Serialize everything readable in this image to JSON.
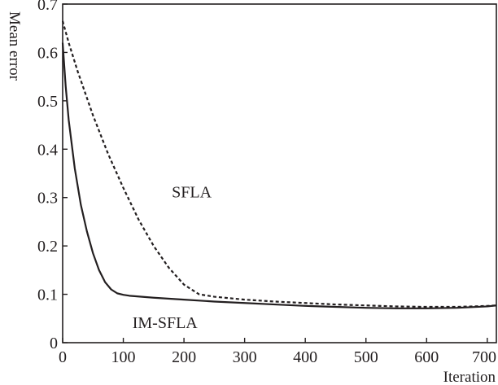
{
  "chart_data": {
    "type": "line",
    "title": "",
    "xlabel": "Iteration",
    "ylabel": "Mean error",
    "xlim": [
      0,
      715
    ],
    "ylim": [
      0,
      0.7
    ],
    "x_ticks": [
      "0",
      "100",
      "200",
      "300",
      "400",
      "500",
      "600",
      "700"
    ],
    "y_ticks": [
      "0",
      "0.1",
      "0.2",
      "0.3",
      "0.4",
      "0.5",
      "0.6",
      "0.7"
    ],
    "grid": false,
    "legend": "none",
    "series": [
      {
        "name": "IM-SFLA",
        "style": "solid",
        "color": "#231f20",
        "x": [
          0,
          5,
          10,
          20,
          30,
          40,
          50,
          60,
          70,
          80,
          90,
          100,
          110,
          150,
          200,
          250,
          300,
          350,
          400,
          450,
          500,
          550,
          600,
          650,
          700,
          715
        ],
        "y": [
          0.62,
          0.53,
          0.46,
          0.36,
          0.285,
          0.23,
          0.185,
          0.15,
          0.125,
          0.11,
          0.102,
          0.099,
          0.097,
          0.093,
          0.089,
          0.085,
          0.082,
          0.079,
          0.076,
          0.074,
          0.072,
          0.071,
          0.071,
          0.072,
          0.075,
          0.077
        ]
      },
      {
        "name": "SFLA",
        "style": "dotted",
        "color": "#231f20",
        "x": [
          0,
          10,
          25,
          50,
          75,
          100,
          125,
          150,
          175,
          200,
          225,
          250,
          300,
          350,
          400,
          450,
          500,
          550,
          600,
          650,
          700,
          715
        ],
        "y": [
          0.665,
          0.62,
          0.56,
          0.47,
          0.39,
          0.32,
          0.255,
          0.2,
          0.155,
          0.12,
          0.1,
          0.095,
          0.089,
          0.085,
          0.082,
          0.079,
          0.077,
          0.075,
          0.074,
          0.074,
          0.076,
          0.077
        ]
      }
    ],
    "annotations": [
      {
        "text": "SFLA",
        "x": 180,
        "y": 0.3
      },
      {
        "text": "IM-SFLA",
        "x": 115,
        "y": 0.03
      }
    ]
  }
}
